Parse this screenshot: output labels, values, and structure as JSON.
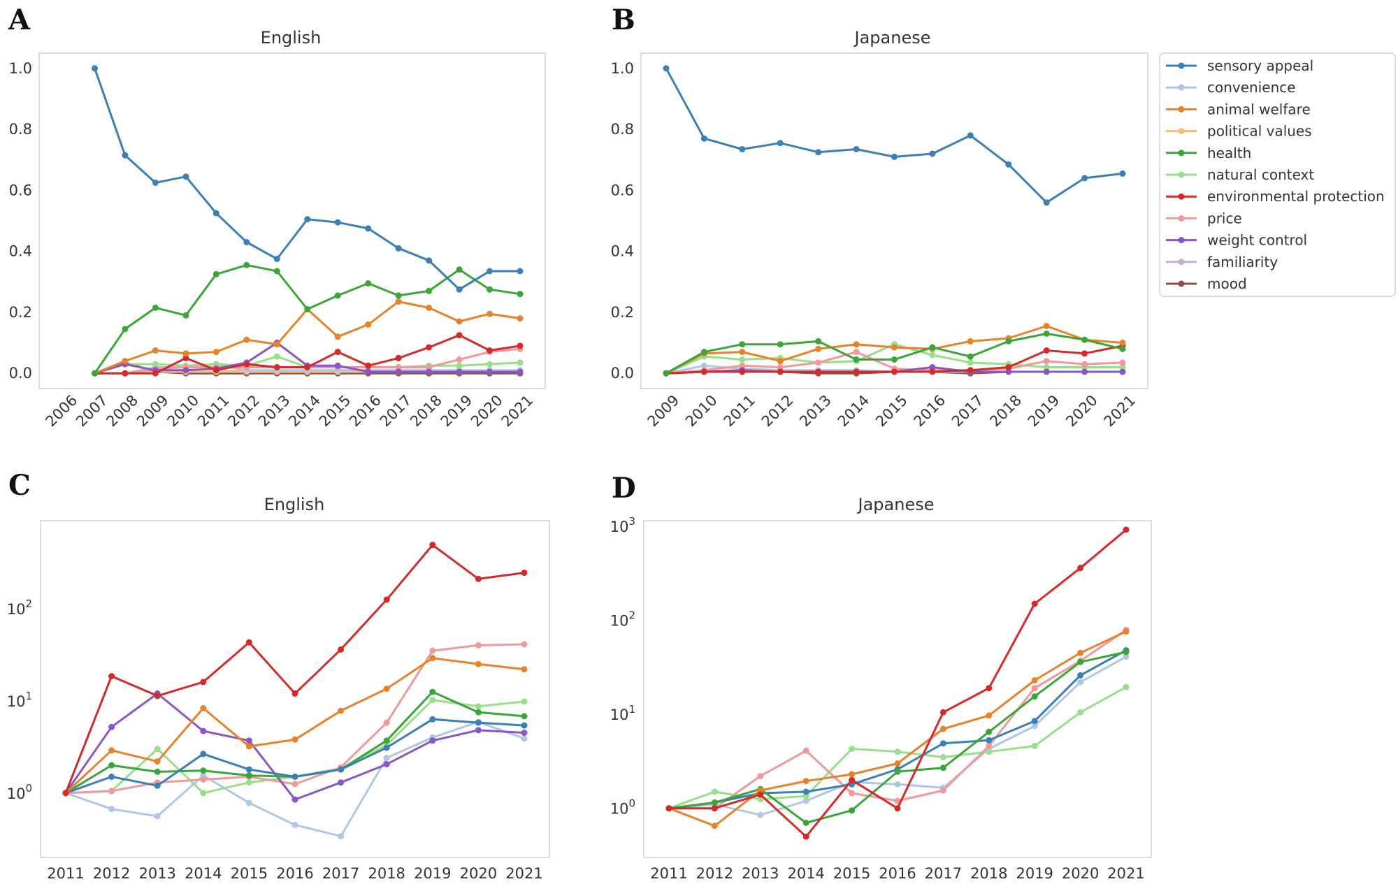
{
  "colors": {
    "sensory appeal": "#3a7fb6",
    "convenience": "#aec7e8",
    "animal welfare": "#e8822a",
    "political values": "#f4bf7a",
    "health": "#3aa637",
    "natural context": "#98df8a",
    "environmental protection": "#d42a2a",
    "price": "#f2989a",
    "weight control": "#8a55c4",
    "familiarity": "#c5b0d5",
    "mood": "#8c4f43"
  },
  "legend": {
    "items": [
      "sensory appeal",
      "convenience",
      "animal welfare",
      "political values",
      "health",
      "natural context",
      "environmental protection",
      "price",
      "weight control",
      "familiarity",
      "mood"
    ]
  },
  "chart_data": [
    {
      "id": "A",
      "letter": "A",
      "type": "line",
      "title": "English",
      "yscale": "linear",
      "x": [
        "2007",
        "2008",
        "2009",
        "2010",
        "2011",
        "2012",
        "2013",
        "2014",
        "2015",
        "2016",
        "2017",
        "2018",
        "2019",
        "2020",
        "2021"
      ],
      "xticks": [
        "2006",
        "2007",
        "2008",
        "2009",
        "2010",
        "2011",
        "2012",
        "2013",
        "2014",
        "2015",
        "2016",
        "2017",
        "2018",
        "2019",
        "2020",
        "2021"
      ],
      "xlim": [
        2006,
        2021
      ],
      "ylim": [
        -0.05,
        1.05
      ],
      "yticks": [
        0.0,
        0.2,
        0.4,
        0.6,
        0.8,
        1.0
      ],
      "ytick_labels": [
        "0.0",
        "0.2",
        "0.4",
        "0.6",
        "0.8",
        "1.0"
      ],
      "series": [
        {
          "name": "mood",
          "values": [
            0,
            0.035,
            0.005,
            0.0,
            0.0,
            0.0,
            0.0,
            0.0,
            0.0,
            0.0,
            0.0,
            0.0,
            0.0,
            0.0,
            0.0
          ]
        },
        {
          "name": "familiarity",
          "values": [
            0,
            0,
            0.005,
            0.005,
            0.005,
            0.01,
            0.005,
            0.005,
            0.005,
            0.005,
            0.005,
            0.005,
            0.005,
            0.005,
            0.005
          ]
        },
        {
          "name": "political values",
          "values": [
            0,
            0,
            0.005,
            0.005,
            0.005,
            0.005,
            0.005,
            0.005,
            0.005,
            0.005,
            0.005,
            0.005,
            0.005,
            0.005,
            0.005
          ]
        },
        {
          "name": "convenience",
          "values": [
            0,
            0,
            0.02,
            0.02,
            0.03,
            0.01,
            0.01,
            0.01,
            0.01,
            0.01,
            0.01,
            0.01,
            0.01,
            0.01,
            0.01
          ]
        },
        {
          "name": "natural context",
          "values": [
            0,
            0.03,
            0.03,
            0.025,
            0.03,
            0.025,
            0.055,
            0.02,
            0.02,
            0.02,
            0.02,
            0.025,
            0.025,
            0.03,
            0.035
          ]
        },
        {
          "name": "price",
          "values": [
            0,
            0,
            0.015,
            0.02,
            0.02,
            0.02,
            0.02,
            0.02,
            0.02,
            0.02,
            0.02,
            0.02,
            0.045,
            0.07,
            0.08
          ]
        },
        {
          "name": "weight control",
          "values": [
            0,
            0.03,
            0.01,
            0.01,
            0.015,
            0.035,
            0.1,
            0.025,
            0.025,
            0.005,
            0.005,
            0.005,
            0.005,
            0.005,
            0.005
          ]
        },
        {
          "name": "environmental protection",
          "values": [
            0,
            0,
            0,
            0.05,
            0.01,
            0.03,
            0.02,
            0.02,
            0.07,
            0.025,
            0.05,
            0.085,
            0.125,
            0.075,
            0.09
          ]
        },
        {
          "name": "animal welfare",
          "values": [
            0,
            0.04,
            0.075,
            0.065,
            0.07,
            0.11,
            0.095,
            0.21,
            0.12,
            0.16,
            0.235,
            0.215,
            0.17,
            0.195,
            0.18
          ]
        },
        {
          "name": "health",
          "values": [
            0,
            0.145,
            0.215,
            0.19,
            0.325,
            0.355,
            0.335,
            0.21,
            0.255,
            0.295,
            0.255,
            0.27,
            0.34,
            0.275,
            0.26
          ]
        },
        {
          "name": "sensory appeal",
          "values": [
            1.0,
            0.715,
            0.625,
            0.645,
            0.525,
            0.43,
            0.375,
            0.505,
            0.495,
            0.475,
            0.41,
            0.37,
            0.275,
            0.335,
            0.335
          ]
        }
      ]
    },
    {
      "id": "B",
      "letter": "B",
      "type": "line",
      "title": "Japanese",
      "yscale": "linear",
      "x": [
        "2009",
        "2010",
        "2011",
        "2012",
        "2013",
        "2014",
        "2015",
        "2016",
        "2017",
        "2018",
        "2019",
        "2020",
        "2021"
      ],
      "xticks": [
        "2009",
        "2010",
        "2011",
        "2012",
        "2013",
        "2014",
        "2015",
        "2016",
        "2017",
        "2018",
        "2019",
        "2020",
        "2021"
      ],
      "xlim": [
        2009,
        2021
      ],
      "ylim": [
        -0.05,
        1.05
      ],
      "yticks": [
        0.0,
        0.2,
        0.4,
        0.6,
        0.8,
        1.0
      ],
      "ytick_labels": [
        "0.0",
        "0.2",
        "0.4",
        "0.6",
        "0.8",
        "1.0"
      ],
      "series": [
        {
          "name": "mood",
          "values": [
            0,
            0.005,
            0.005,
            0.005,
            0,
            0,
            0.005,
            0.005,
            0,
            0.005,
            0.005,
            0.005,
            0.005
          ]
        },
        {
          "name": "familiarity",
          "values": [
            0,
            0.005,
            0.005,
            0.005,
            0.005,
            0.005,
            0.005,
            0.005,
            0.005,
            0.005,
            0.005,
            0.005,
            0.005
          ]
        },
        {
          "name": "political values",
          "values": [
            0,
            0.005,
            0.005,
            0.005,
            0.005,
            0.005,
            0.005,
            0.005,
            0.005,
            0.005,
            0.005,
            0.005,
            0.005
          ]
        },
        {
          "name": "convenience",
          "values": [
            0,
            0.025,
            0.015,
            0.01,
            0.01,
            0.01,
            0.005,
            0.005,
            0.005,
            0.005,
            0.005,
            0.005,
            0.005
          ]
        },
        {
          "name": "natural context",
          "values": [
            0,
            0.055,
            0.045,
            0.05,
            0.035,
            0.04,
            0.095,
            0.06,
            0.035,
            0.03,
            0.02,
            0.02,
            0.02
          ]
        },
        {
          "name": "price",
          "values": [
            0,
            0.01,
            0.025,
            0.02,
            0.035,
            0.07,
            0.015,
            0.01,
            0.01,
            0.015,
            0.04,
            0.03,
            0.035
          ]
        },
        {
          "name": "weight control",
          "values": [
            0,
            0.005,
            0.01,
            0.005,
            0.005,
            0.005,
            0.005,
            0.02,
            0.005,
            0.005,
            0.005,
            0.005,
            0.005
          ]
        },
        {
          "name": "environmental protection",
          "values": [
            0,
            0.005,
            0.005,
            0.005,
            0.005,
            0.005,
            0.005,
            0.005,
            0.01,
            0.02,
            0.075,
            0.065,
            0.09
          ]
        },
        {
          "name": "animal welfare",
          "values": [
            0,
            0.065,
            0.07,
            0.04,
            0.08,
            0.095,
            0.085,
            0.08,
            0.105,
            0.115,
            0.155,
            0.11,
            0.1
          ]
        },
        {
          "name": "health",
          "values": [
            0,
            0.07,
            0.095,
            0.095,
            0.105,
            0.045,
            0.045,
            0.085,
            0.055,
            0.105,
            0.13,
            0.11,
            0.08
          ]
        },
        {
          "name": "sensory appeal",
          "values": [
            1.0,
            0.77,
            0.735,
            0.755,
            0.725,
            0.735,
            0.71,
            0.72,
            0.78,
            0.685,
            0.56,
            0.64,
            0.655
          ]
        }
      ]
    },
    {
      "id": "C",
      "letter": "C",
      "type": "line",
      "title": "English",
      "yscale": "log",
      "x": [
        "2011",
        "2012",
        "2013",
        "2014",
        "2015",
        "2016",
        "2017",
        "2018",
        "2019",
        "2020",
        "2021"
      ],
      "xticks": [
        "2011",
        "2012",
        "2013",
        "2014",
        "2015",
        "2016",
        "2017",
        "2018",
        "2019",
        "2020",
        "2021"
      ],
      "xlim": [
        2011,
        2021
      ],
      "ylim": [
        0.2,
        900
      ],
      "yticks": [
        1,
        10,
        100
      ],
      "ytick_labels": [
        [
          "10",
          "0"
        ],
        [
          "10",
          "1"
        ],
        [
          "10",
          "2"
        ]
      ],
      "series": [
        {
          "name": "convenience",
          "values": [
            1.0,
            0.67,
            0.56,
            1.55,
            0.78,
            0.45,
            0.34,
            2.4,
            4.0,
            5.9,
            3.9
          ]
        },
        {
          "name": "natural context",
          "values": [
            1.0,
            1.05,
            3.0,
            1.0,
            1.3,
            1.5,
            1.85,
            3.3,
            10.2,
            8.7,
            9.8
          ]
        },
        {
          "name": "price",
          "values": [
            1.0,
            1.05,
            1.3,
            1.4,
            1.5,
            1.25,
            1.9,
            5.8,
            35,
            40,
            41
          ]
        },
        {
          "name": "weight control",
          "values": [
            1.0,
            5.2,
            12.0,
            4.7,
            3.7,
            0.85,
            1.3,
            2.05,
            3.7,
            4.8,
            4.5
          ]
        },
        {
          "name": "health",
          "values": [
            1.0,
            2.0,
            1.7,
            1.75,
            1.55,
            1.5,
            1.8,
            3.7,
            12.5,
            7.5,
            6.8
          ]
        },
        {
          "name": "sensory appeal",
          "values": [
            1.0,
            1.5,
            1.2,
            2.65,
            1.8,
            1.5,
            1.8,
            3.1,
            6.3,
            5.8,
            5.4
          ]
        },
        {
          "name": "animal welfare",
          "values": [
            1.0,
            2.9,
            2.2,
            8.3,
            3.2,
            3.8,
            7.8,
            13.5,
            29,
            25,
            22
          ]
        },
        {
          "name": "environmental protection",
          "values": [
            1.0,
            18.5,
            11.3,
            16.0,
            43,
            12.0,
            36,
            125,
            490,
            210,
            245
          ]
        }
      ]
    },
    {
      "id": "D",
      "letter": "D",
      "type": "line",
      "title": "Japanese",
      "yscale": "log",
      "x": [
        "2011",
        "2012",
        "2013",
        "2014",
        "2015",
        "2016",
        "2017",
        "2018",
        "2019",
        "2020",
        "2021"
      ],
      "xticks": [
        "2011",
        "2012",
        "2013",
        "2014",
        "2015",
        "2016",
        "2017",
        "2018",
        "2019",
        "2020",
        "2021"
      ],
      "xlim": [
        2011,
        2021
      ],
      "ylim": [
        0.3,
        1150
      ],
      "yticks": [
        1,
        10,
        100,
        1000
      ],
      "ytick_labels": [
        [
          "10",
          "0"
        ],
        [
          "10",
          "1"
        ],
        [
          "10",
          "2"
        ],
        [
          "10",
          "3"
        ]
      ],
      "series": [
        {
          "name": "convenience",
          "values": [
            1.0,
            1.1,
            0.85,
            1.2,
            1.9,
            1.8,
            1.65,
            4.3,
            7.5,
            22,
            41
          ]
        },
        {
          "name": "natural context",
          "values": [
            1.0,
            1.5,
            1.25,
            1.35,
            4.3,
            4.0,
            3.5,
            4.0,
            4.6,
            10.5,
            19.5
          ]
        },
        {
          "name": "price",
          "values": [
            1.0,
            1.0,
            2.2,
            4.1,
            1.45,
            1.2,
            1.55,
            4.6,
            19,
            37,
            79
          ]
        },
        {
          "name": "sensory appeal",
          "values": [
            1.0,
            1.15,
            1.45,
            1.5,
            1.8,
            2.6,
            4.9,
            5.3,
            8.5,
            26,
            48
          ]
        },
        {
          "name": "health",
          "values": [
            1.0,
            1.15,
            1.6,
            0.7,
            0.95,
            2.45,
            2.7,
            6.5,
            15.5,
            36,
            46
          ]
        },
        {
          "name": "animal welfare",
          "values": [
            1.0,
            0.65,
            1.55,
            1.95,
            2.3,
            3.0,
            7.0,
            9.7,
            23,
            45,
            76
          ]
        },
        {
          "name": "environmental protection",
          "values": [
            1.0,
            1.0,
            1.4,
            0.5,
            2.0,
            1.0,
            10.5,
            19.0,
            150,
            360,
            920
          ]
        }
      ]
    }
  ]
}
